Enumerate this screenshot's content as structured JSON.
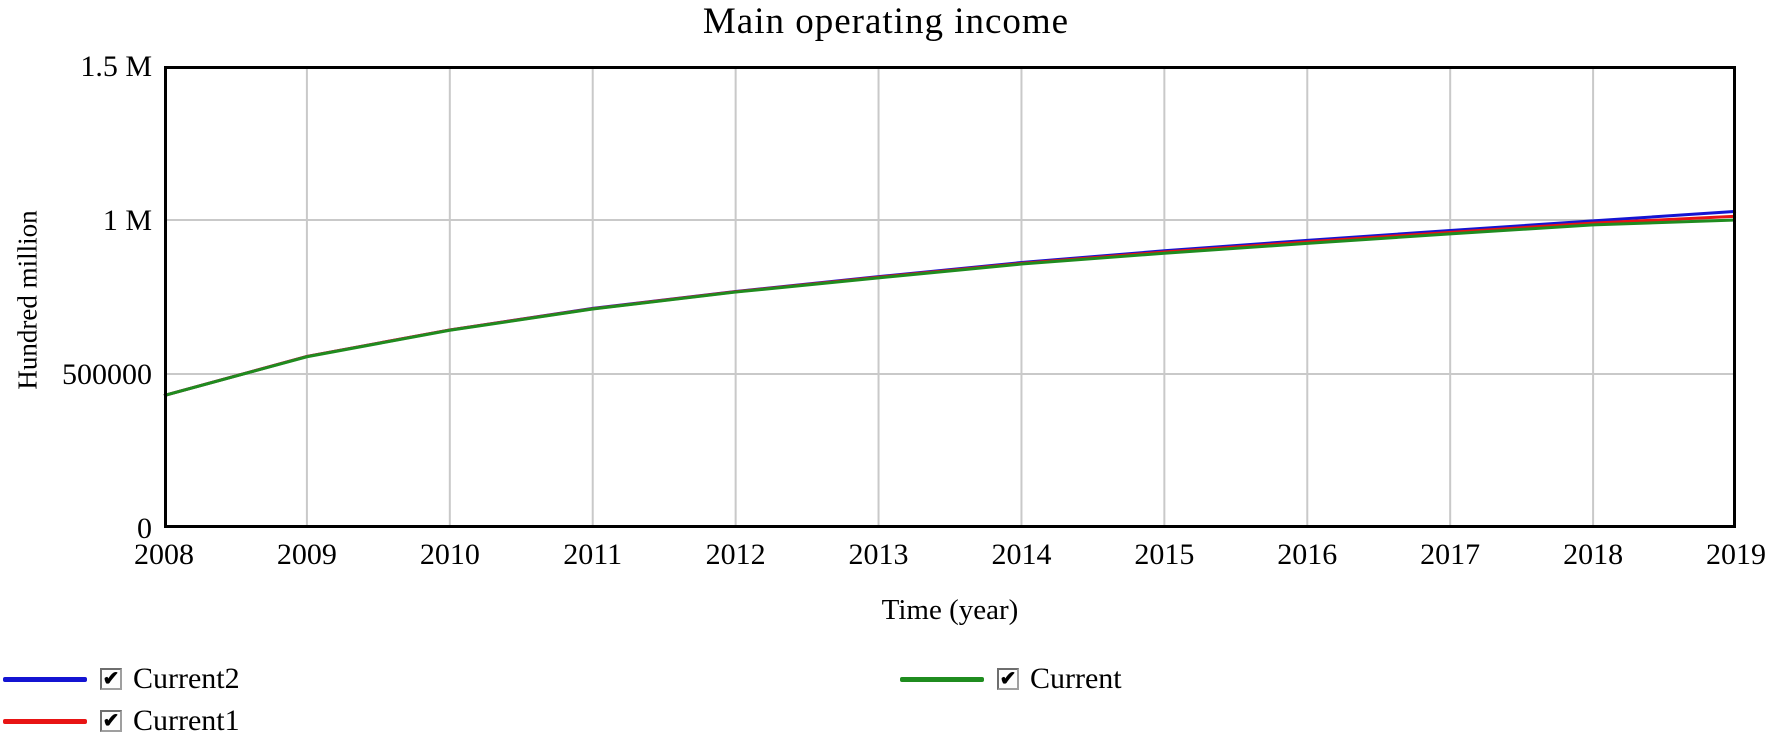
{
  "title": "Main operating income",
  "axes": {
    "y_label": "Hundred million",
    "x_label": "Time (year)",
    "y_ticks": [
      {
        "value": 0,
        "label": "0"
      },
      {
        "value": 500000,
        "label": "500000"
      },
      {
        "value": 1000000,
        "label": "1 M"
      },
      {
        "value": 1500000,
        "label": "1.5 M"
      }
    ],
    "x_ticks": [
      "2008",
      "2009",
      "2010",
      "2011",
      "2012",
      "2013",
      "2014",
      "2015",
      "2016",
      "2017",
      "2018",
      "2019"
    ]
  },
  "chart_data": {
    "type": "line",
    "title": "Main operating income",
    "xlabel": "Time (year)",
    "ylabel": "Hundred million",
    "x": [
      2008,
      2009,
      2010,
      2011,
      2012,
      2013,
      2014,
      2015,
      2016,
      2017,
      2018,
      2019
    ],
    "xlim": [
      2008,
      2019
    ],
    "ylim": [
      0,
      1500000
    ],
    "grid": true,
    "legend_position": "bottom",
    "series": [
      {
        "name": "Current2",
        "color": "#1414d2",
        "values": [
          430000,
          557000,
          643000,
          713000,
          768000,
          816000,
          862000,
          900000,
          934000,
          966000,
          997000,
          1028000
        ]
      },
      {
        "name": "Current1",
        "color": "#e81414",
        "values": [
          430000,
          557000,
          643000,
          712000,
          767000,
          814000,
          859000,
          896000,
          929000,
          960000,
          990000,
          1012000
        ]
      },
      {
        "name": "Current",
        "color": "#1f8c1f",
        "values": [
          430000,
          556000,
          642000,
          711000,
          766000,
          812000,
          857000,
          892000,
          924000,
          955000,
          984000,
          1000000
        ]
      }
    ]
  },
  "legend": {
    "left_items": [
      {
        "label": "Current2",
        "color": "#1414d2",
        "checked": true
      },
      {
        "label": "Current1",
        "color": "#e81414",
        "checked": true
      }
    ],
    "right_items": [
      {
        "label": "Current",
        "color": "#1f8c1f",
        "checked": true
      }
    ]
  },
  "icons": {
    "checkbox_checked": "✔"
  },
  "colors": {
    "background": "#ffffff",
    "grid": "#c9c9c9",
    "axis_border": "#000000",
    "text": "#000000"
  }
}
